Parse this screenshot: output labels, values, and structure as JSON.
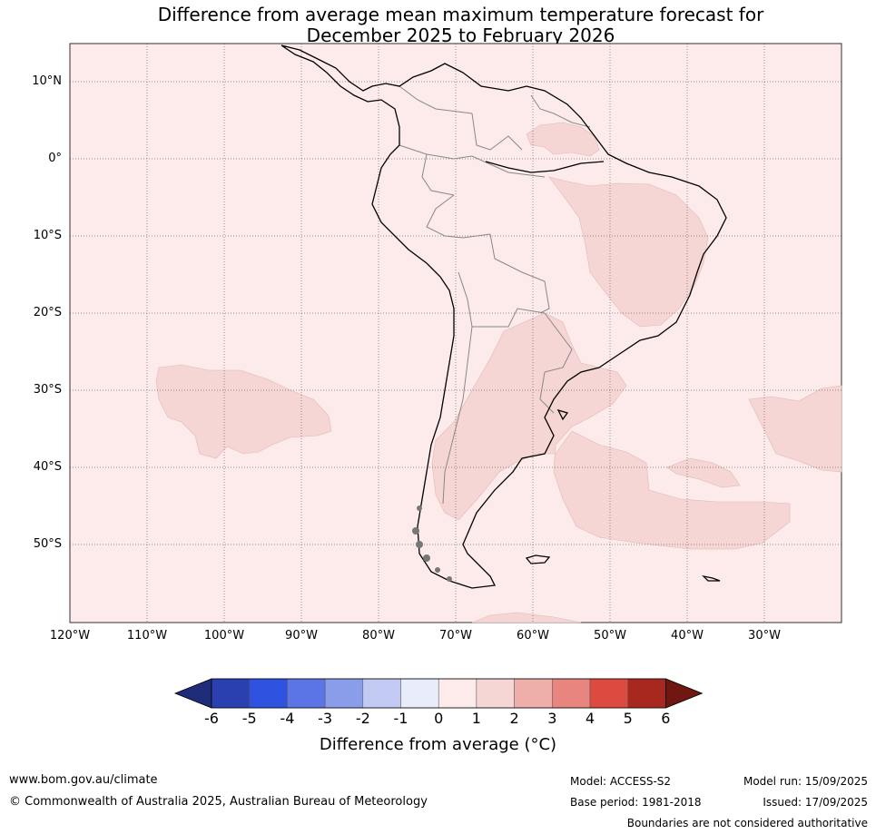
{
  "title": {
    "line1": "Difference from average mean maximum temperature forecast for",
    "line2": "December 2025 to February 2026"
  },
  "map": {
    "lat_labels": [
      "10°N",
      "0°",
      "10°S",
      "20°S",
      "30°S",
      "40°S",
      "50°S"
    ],
    "lon_labels": [
      "120°W",
      "110°W",
      "100°W",
      "90°W",
      "80°W",
      "70°W",
      "60°W",
      "50°W",
      "40°W",
      "30°W"
    ],
    "background_class_color": "#fcebea",
    "warm_class_color": "#f5d6d4"
  },
  "colorbar": {
    "ticks": [
      "-6",
      "-5",
      "-4",
      "-3",
      "-2",
      "-1",
      "0",
      "1",
      "2",
      "3",
      "4",
      "5",
      "6"
    ],
    "colors": [
      "#1f2c7a",
      "#2a3fb0",
      "#3052e0",
      "#5b74e6",
      "#8a9deb",
      "#c2caf4",
      "#e9ecfb",
      "#fcebea",
      "#f5d6d4",
      "#eeaea9",
      "#e8857e",
      "#dd4a3f",
      "#a8281f",
      "#701711"
    ],
    "label": "Difference from average (°C)"
  },
  "footer": {
    "website": "www.bom.gov.au/climate",
    "copyright": "© Commonwealth of Australia 2025, Australian Bureau of Meteorology",
    "model": "Model: ACCESS-S2",
    "base_period": "Base period: 1981-2018",
    "model_run": "Model run: 15/09/2025",
    "issued": "Issued: 17/09/2025",
    "disclaimer": "Boundaries are not considered authoritative"
  }
}
